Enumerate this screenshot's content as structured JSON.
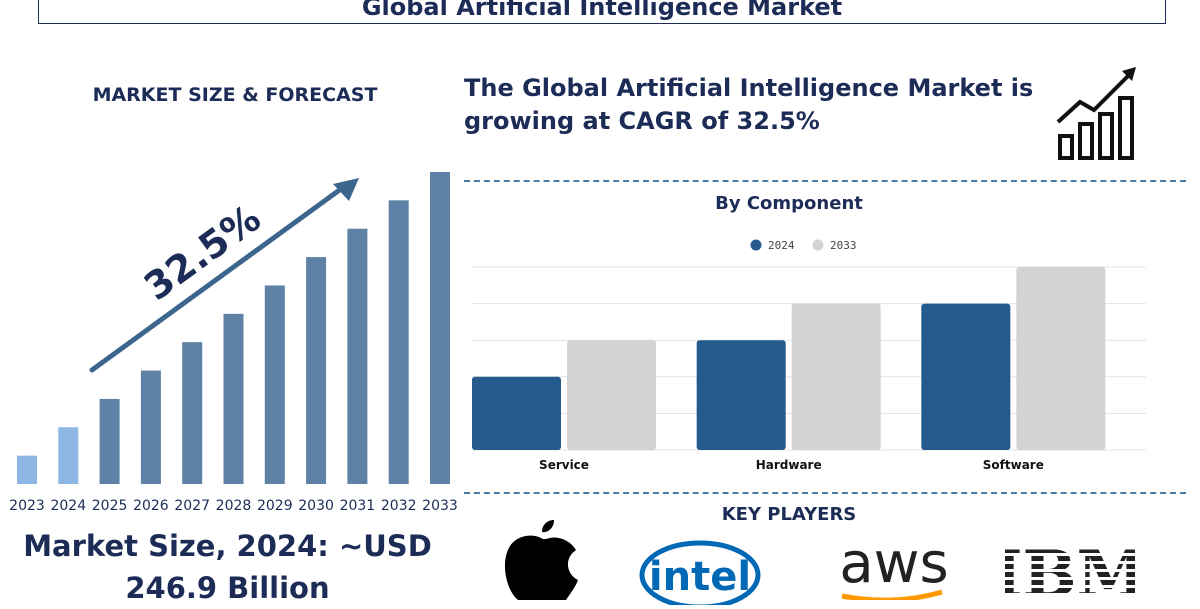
{
  "header": {
    "title": "Global Artificial Intelligence Market"
  },
  "left_panel": {
    "heading": "MARKET SIZE & FORECAST",
    "cagr_label": "32.5%",
    "market_size_line1": "Market Size, 2024: ~USD",
    "market_size_line2": "246.9 Billion"
  },
  "right_panel": {
    "headline_line1": "The Global Artificial Intelligence Market is",
    "headline_line2": "growing at CAGR of 32.5%",
    "component_heading": "By Component",
    "key_players_heading": "KEY PLAYERS"
  },
  "colors": {
    "navy": "#1c2c57",
    "bar_light_blue": "#8db6e3",
    "bar_steel_blue": "#5e82a6",
    "series_2024": "#245a8c",
    "series_2033": "#d3d3d3",
    "dashed_divider": "#4a7ba7",
    "intel_blue": "#0068b5",
    "aws_orange": "#ff9900"
  },
  "icons": [
    "growth-chart-icon",
    "apple-logo-icon",
    "intel-logo-icon",
    "aws-logo-icon",
    "ibm-logo-icon"
  ],
  "logos": {
    "intel_text": "intel",
    "aws_text": "aws",
    "ibm_text": "IBM"
  },
  "chart_data": [
    {
      "type": "bar",
      "categories": [
        "2023",
        "2024",
        "2025",
        "2026",
        "2027",
        "2028",
        "2029",
        "2030",
        "2031",
        "2032",
        "2033"
      ],
      "values": [
        1,
        2,
        3,
        4,
        5,
        6,
        7,
        8,
        9,
        10,
        11
      ],
      "highlighted_categories": [
        "2023",
        "2024"
      ],
      "title": "MARKET SIZE & FORECAST",
      "annotation": "32.5%",
      "xlabel": "",
      "ylabel": "",
      "ylim": [
        0,
        11
      ],
      "grid": false
    },
    {
      "type": "bar",
      "title": "By Component",
      "categories": [
        "Service",
        "Hardware",
        "Software"
      ],
      "series": [
        {
          "name": "2024",
          "values": [
            2,
            3,
            4
          ]
        },
        {
          "name": "2033",
          "values": [
            3,
            4,
            5
          ]
        }
      ],
      "xlabel": "",
      "ylabel": "",
      "ylim": [
        0,
        5
      ],
      "grid": true,
      "legend": "top-center"
    }
  ]
}
